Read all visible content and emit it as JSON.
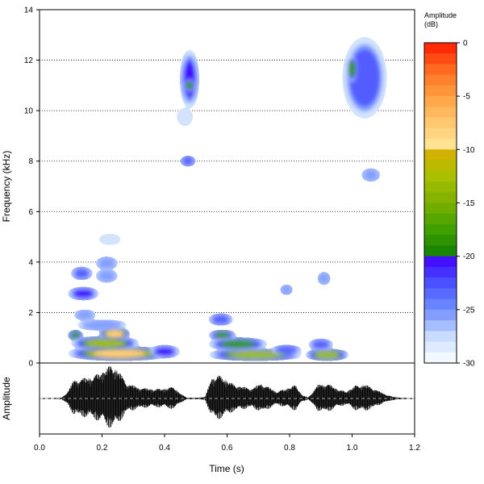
{
  "chart_data": [
    {
      "type": "heatmap",
      "panel": "spectrogram",
      "ylabel": "Frequency (kHz)",
      "xlim": [
        0,
        1.2
      ],
      "ylim": [
        0,
        14
      ],
      "y_ticks": [
        0,
        2,
        4,
        6,
        8,
        10,
        12,
        14
      ],
      "y_tick_labels": [
        "0",
        "2",
        "4",
        "6",
        "8",
        "10",
        "12",
        "14"
      ],
      "grid": "horizontal dotted",
      "colorbar": {
        "title_line1": "Amplitude",
        "title_line2": "(dB)",
        "range": [
          -30,
          0
        ],
        "ticks": [
          0,
          -5,
          -10,
          -15,
          -20,
          -25,
          -30
        ],
        "tick_labels": [
          "0",
          "-5",
          "-10",
          "-15",
          "-20",
          "-25",
          "-30"
        ],
        "colors": {
          "level_0": "#ff1a00",
          "level_5": "#ffa040",
          "level_10": "#ffe89a",
          "level_10b": "#d8b000",
          "level_15": "#7cb000",
          "level_20": "#108000",
          "level_20b": "#4000ff",
          "level_25": "#7090ff",
          "level_30": "#ffffff"
        }
      },
      "regions": [
        {
          "t": [
            0.1,
            0.41
          ],
          "f": [
            0.2,
            0.55
          ],
          "level": -8
        },
        {
          "t": [
            0.36,
            0.44
          ],
          "f": [
            0.3,
            0.6
          ],
          "level": -20
        },
        {
          "t": [
            0.11,
            0.31
          ],
          "f": [
            0.6,
            0.95
          ],
          "level": -11
        },
        {
          "t": [
            0.2,
            0.28
          ],
          "f": [
            1.0,
            1.3
          ],
          "level": -6
        },
        {
          "t": [
            0.1,
            0.13
          ],
          "f": [
            1.0,
            1.2
          ],
          "level": -18
        },
        {
          "t": [
            0.1,
            0.18
          ],
          "f": [
            2.6,
            2.9
          ],
          "level": -19
        },
        {
          "t": [
            0.11,
            0.16
          ],
          "f": [
            3.4,
            3.7
          ],
          "level": -22
        },
        {
          "t": [
            0.12,
            0.17
          ],
          "f": [
            1.8,
            2.0
          ],
          "level": -24
        },
        {
          "t": [
            0.13,
            0.27
          ],
          "f": [
            1.4,
            1.6
          ],
          "level": -24
        },
        {
          "t": [
            0.19,
            0.24
          ],
          "f": [
            3.3,
            3.6
          ],
          "level": -25
        },
        {
          "t": [
            0.19,
            0.24
          ],
          "f": [
            3.8,
            4.1
          ],
          "level": -25
        },
        {
          "t": [
            0.2,
            0.25
          ],
          "f": [
            4.8,
            5.0
          ],
          "level": -27
        },
        {
          "t": [
            0.55,
            0.83
          ],
          "f": [
            0.2,
            0.45
          ],
          "level": -12
        },
        {
          "t": [
            0.55,
            0.72
          ],
          "f": [
            0.6,
            0.9
          ],
          "level": -16
        },
        {
          "t": [
            0.55,
            0.62
          ],
          "f": [
            1.0,
            1.2
          ],
          "level": -18
        },
        {
          "t": [
            0.55,
            0.61
          ],
          "f": [
            1.6,
            1.85
          ],
          "level": -22
        },
        {
          "t": [
            0.75,
            0.83
          ],
          "f": [
            0.4,
            0.6
          ],
          "level": -22
        },
        {
          "t": [
            0.86,
            0.98
          ],
          "f": [
            0.2,
            0.45
          ],
          "level": -12
        },
        {
          "t": [
            0.87,
            0.93
          ],
          "f": [
            0.6,
            0.85
          ],
          "level": -22
        },
        {
          "t": [
            0.46,
            0.5
          ],
          "f": [
            10.2,
            12.3
          ],
          "level": -20
        },
        {
          "t": [
            0.47,
            0.49
          ],
          "f": [
            10.8,
            11.2
          ],
          "level": -17
        },
        {
          "t": [
            0.46,
            0.49
          ],
          "f": [
            7.9,
            8.1
          ],
          "level": -23
        },
        {
          "t": [
            0.45,
            0.48
          ],
          "f": [
            9.5,
            10.0
          ],
          "level": -27
        },
        {
          "t": [
            0.98,
            1.1
          ],
          "f": [
            9.8,
            12.8
          ],
          "level": -22
        },
        {
          "t": [
            0.99,
            1.01
          ],
          "f": [
            11.2,
            12.1
          ],
          "level": -16
        },
        {
          "t": [
            1.04,
            1.08
          ],
          "f": [
            7.3,
            7.6
          ],
          "level": -25
        },
        {
          "t": [
            0.78,
            0.8
          ],
          "f": [
            2.8,
            3.0
          ],
          "level": -24
        },
        {
          "t": [
            0.9,
            0.92
          ],
          "f": [
            3.2,
            3.5
          ],
          "level": -25
        }
      ]
    },
    {
      "type": "line",
      "panel": "waveform",
      "ylabel": "Amplitude",
      "xlabel": "Time (s)",
      "xlim": [
        0,
        1.2
      ],
      "x_ticks": [
        0.0,
        0.2,
        0.4,
        0.6,
        0.8,
        1.0,
        1.2
      ],
      "x_tick_labels": [
        "0.0",
        "0.2",
        "0.4",
        "0.6",
        "0.8",
        "1.0",
        "1.2"
      ],
      "envelope": {
        "t": [
          0.0,
          0.07,
          0.09,
          0.11,
          0.14,
          0.17,
          0.2,
          0.23,
          0.25,
          0.28,
          0.31,
          0.34,
          0.37,
          0.4,
          0.43,
          0.45,
          0.47,
          0.5,
          0.53,
          0.55,
          0.57,
          0.6,
          0.62,
          0.65,
          0.68,
          0.71,
          0.74,
          0.76,
          0.79,
          0.82,
          0.84,
          0.86,
          0.89,
          0.92,
          0.95,
          0.98,
          1.01,
          1.04,
          1.07,
          1.1,
          1.13,
          1.16,
          1.2
        ],
        "amp": [
          0.01,
          0.02,
          0.2,
          0.55,
          0.6,
          0.65,
          0.8,
          1.0,
          0.85,
          0.45,
          0.35,
          0.3,
          0.28,
          0.3,
          0.35,
          0.15,
          0.03,
          0.02,
          0.05,
          0.6,
          0.7,
          0.55,
          0.42,
          0.35,
          0.3,
          0.45,
          0.3,
          0.2,
          0.3,
          0.4,
          0.1,
          0.03,
          0.4,
          0.45,
          0.3,
          0.2,
          0.38,
          0.42,
          0.3,
          0.15,
          0.05,
          0.02,
          0.01
        ]
      }
    }
  ]
}
